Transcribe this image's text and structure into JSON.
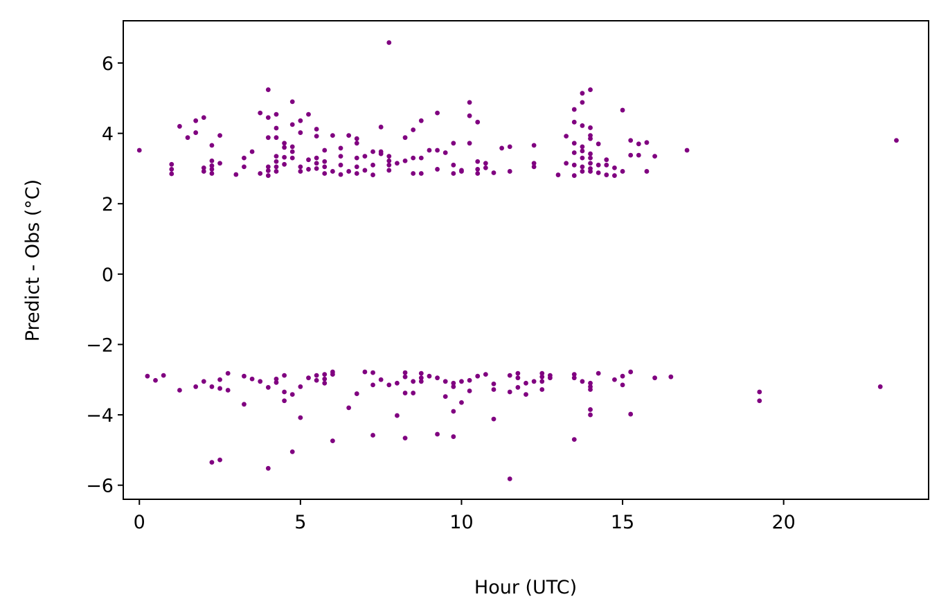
{
  "chart_data": {
    "type": "scatter",
    "title": "",
    "xlabel": "Hour (UTC)",
    "ylabel": "Predict - Obs (°C)",
    "xlim": [
      -0.5,
      24.5
    ],
    "ylim": [
      -6.4,
      7.2
    ],
    "xticks": [
      0,
      5,
      10,
      15,
      20
    ],
    "xtick_labels": [
      "0",
      "5",
      "10",
      "15",
      "20"
    ],
    "yticks": [
      -6,
      -4,
      -2,
      0,
      2,
      4,
      6
    ],
    "ytick_labels": [
      "−6",
      "−4",
      "−2",
      "0",
      "2",
      "4",
      "6"
    ],
    "grid": false,
    "marker_color": "#800080",
    "series": [
      {
        "points": [
          [
            0.0,
            3.52
          ],
          [
            1.0,
            3.12
          ],
          [
            1.0,
            2.98
          ],
          [
            1.0,
            2.85
          ],
          [
            1.25,
            4.2
          ],
          [
            1.5,
            3.88
          ],
          [
            1.75,
            4.02
          ],
          [
            1.75,
            4.36
          ],
          [
            2.0,
            4.45
          ],
          [
            2.0,
            3.02
          ],
          [
            2.0,
            2.92
          ],
          [
            2.25,
            3.22
          ],
          [
            2.25,
            3.08
          ],
          [
            2.25,
            2.98
          ],
          [
            2.25,
            2.86
          ],
          [
            2.25,
            3.66
          ],
          [
            2.5,
            3.94
          ],
          [
            2.5,
            3.15
          ],
          [
            3.0,
            2.83
          ],
          [
            3.25,
            3.3
          ],
          [
            3.25,
            3.05
          ],
          [
            3.5,
            3.48
          ],
          [
            3.75,
            4.58
          ],
          [
            3.75,
            2.86
          ],
          [
            4.0,
            5.24
          ],
          [
            4.0,
            4.45
          ],
          [
            4.0,
            3.88
          ],
          [
            4.0,
            3.05
          ],
          [
            4.0,
            2.94
          ],
          [
            4.0,
            2.8
          ],
          [
            4.25,
            4.54
          ],
          [
            4.25,
            4.15
          ],
          [
            4.25,
            3.88
          ],
          [
            4.25,
            3.35
          ],
          [
            4.25,
            3.2
          ],
          [
            4.25,
            3.05
          ],
          [
            4.25,
            2.92
          ],
          [
            4.5,
            3.72
          ],
          [
            4.5,
            3.6
          ],
          [
            4.5,
            3.32
          ],
          [
            4.5,
            3.12
          ],
          [
            4.75,
            4.9
          ],
          [
            4.75,
            4.25
          ],
          [
            4.75,
            3.62
          ],
          [
            4.75,
            3.48
          ],
          [
            4.75,
            3.3
          ],
          [
            5.0,
            4.36
          ],
          [
            5.0,
            4.02
          ],
          [
            5.0,
            3.05
          ],
          [
            5.0,
            2.92
          ],
          [
            5.25,
            4.54
          ],
          [
            5.25,
            3.25
          ],
          [
            5.25,
            2.98
          ],
          [
            5.5,
            4.12
          ],
          [
            5.5,
            3.92
          ],
          [
            5.5,
            3.3
          ],
          [
            5.5,
            3.15
          ],
          [
            5.5,
            3.0
          ],
          [
            5.75,
            3.52
          ],
          [
            5.75,
            3.2
          ],
          [
            5.75,
            3.05
          ],
          [
            5.75,
            2.86
          ],
          [
            6.0,
            3.94
          ],
          [
            6.0,
            2.92
          ],
          [
            6.25,
            3.58
          ],
          [
            6.25,
            3.35
          ],
          [
            6.25,
            3.1
          ],
          [
            6.25,
            2.83
          ],
          [
            6.5,
            3.94
          ],
          [
            6.5,
            2.92
          ],
          [
            6.75,
            3.85
          ],
          [
            6.75,
            3.72
          ],
          [
            6.75,
            3.3
          ],
          [
            6.75,
            3.05
          ],
          [
            6.75,
            2.86
          ],
          [
            7.0,
            3.35
          ],
          [
            7.0,
            2.95
          ],
          [
            7.25,
            3.48
          ],
          [
            7.25,
            3.1
          ],
          [
            7.25,
            2.82
          ],
          [
            7.5,
            4.18
          ],
          [
            7.5,
            3.48
          ],
          [
            7.5,
            3.42
          ],
          [
            7.75,
            6.58
          ],
          [
            7.75,
            3.35
          ],
          [
            7.75,
            3.22
          ],
          [
            7.75,
            3.1
          ],
          [
            7.75,
            2.95
          ],
          [
            8.0,
            3.15
          ],
          [
            8.25,
            3.88
          ],
          [
            8.25,
            3.22
          ],
          [
            8.5,
            4.1
          ],
          [
            8.5,
            3.3
          ],
          [
            8.5,
            2.86
          ],
          [
            8.75,
            4.36
          ],
          [
            8.75,
            3.3
          ],
          [
            8.75,
            2.86
          ],
          [
            9.0,
            3.52
          ],
          [
            9.25,
            4.58
          ],
          [
            9.25,
            3.52
          ],
          [
            9.25,
            2.98
          ],
          [
            9.5,
            3.45
          ],
          [
            9.75,
            3.72
          ],
          [
            9.75,
            3.1
          ],
          [
            9.75,
            2.86
          ],
          [
            10.0,
            2.95
          ],
          [
            10.0,
            2.92
          ],
          [
            10.25,
            4.88
          ],
          [
            10.25,
            4.5
          ],
          [
            10.25,
            3.72
          ],
          [
            10.5,
            4.32
          ],
          [
            10.5,
            3.2
          ],
          [
            10.5,
            2.98
          ],
          [
            10.5,
            2.86
          ],
          [
            10.75,
            3.15
          ],
          [
            10.75,
            3.02
          ],
          [
            11.0,
            2.88
          ],
          [
            11.25,
            3.58
          ],
          [
            11.5,
            3.62
          ],
          [
            11.5,
            2.92
          ],
          [
            12.25,
            3.66
          ],
          [
            12.25,
            3.15
          ],
          [
            12.25,
            3.05
          ],
          [
            13.0,
            2.82
          ],
          [
            13.25,
            3.92
          ],
          [
            13.25,
            3.15
          ],
          [
            13.5,
            4.68
          ],
          [
            13.5,
            4.32
          ],
          [
            13.5,
            3.72
          ],
          [
            13.5,
            3.45
          ],
          [
            13.5,
            3.1
          ],
          [
            13.5,
            2.8
          ],
          [
            13.75,
            5.14
          ],
          [
            13.75,
            4.88
          ],
          [
            13.75,
            4.22
          ],
          [
            13.75,
            3.62
          ],
          [
            13.75,
            3.5
          ],
          [
            13.75,
            3.3
          ],
          [
            13.75,
            3.05
          ],
          [
            13.75,
            2.92
          ],
          [
            14.0,
            5.24
          ],
          [
            14.0,
            4.16
          ],
          [
            14.0,
            3.94
          ],
          [
            14.0,
            3.85
          ],
          [
            14.0,
            3.42
          ],
          [
            14.0,
            3.3
          ],
          [
            14.0,
            3.15
          ],
          [
            14.0,
            3.0
          ],
          [
            14.0,
            2.92
          ],
          [
            14.25,
            3.7
          ],
          [
            14.25,
            3.1
          ],
          [
            14.25,
            2.88
          ],
          [
            14.5,
            3.25
          ],
          [
            14.5,
            3.1
          ],
          [
            14.5,
            2.82
          ],
          [
            14.75,
            3.02
          ],
          [
            14.75,
            2.8
          ],
          [
            15.0,
            4.66
          ],
          [
            15.0,
            2.92
          ],
          [
            15.25,
            3.8
          ],
          [
            15.25,
            3.38
          ],
          [
            15.5,
            3.7
          ],
          [
            15.5,
            3.38
          ],
          [
            15.75,
            3.74
          ],
          [
            15.75,
            2.92
          ],
          [
            16.0,
            3.35
          ],
          [
            17.0,
            3.52
          ],
          [
            23.5,
            3.8
          ],
          [
            0.25,
            -2.9
          ],
          [
            0.5,
            -3.02
          ],
          [
            0.75,
            -2.88
          ],
          [
            1.25,
            -3.3
          ],
          [
            1.75,
            -3.2
          ],
          [
            2.0,
            -3.05
          ],
          [
            2.25,
            -3.2
          ],
          [
            2.25,
            -5.35
          ],
          [
            2.5,
            -3.25
          ],
          [
            2.5,
            -3.0
          ],
          [
            2.5,
            -5.28
          ],
          [
            2.75,
            -3.3
          ],
          [
            2.75,
            -2.82
          ],
          [
            3.25,
            -2.9
          ],
          [
            3.25,
            -3.7
          ],
          [
            3.5,
            -2.98
          ],
          [
            3.75,
            -3.05
          ],
          [
            4.0,
            -3.22
          ],
          [
            4.0,
            -5.52
          ],
          [
            4.25,
            -3.08
          ],
          [
            4.25,
            -2.98
          ],
          [
            4.5,
            -2.88
          ],
          [
            4.5,
            -3.35
          ],
          [
            4.5,
            -3.6
          ],
          [
            4.75,
            -3.42
          ],
          [
            4.75,
            -5.05
          ],
          [
            5.0,
            -3.2
          ],
          [
            5.0,
            -4.08
          ],
          [
            5.25,
            -2.95
          ],
          [
            5.5,
            -3.02
          ],
          [
            5.5,
            -2.88
          ],
          [
            5.75,
            -3.1
          ],
          [
            5.75,
            -2.98
          ],
          [
            5.75,
            -2.85
          ],
          [
            6.0,
            -2.85
          ],
          [
            6.0,
            -2.78
          ],
          [
            6.0,
            -4.74
          ],
          [
            6.5,
            -3.8
          ],
          [
            6.75,
            -3.4
          ],
          [
            7.0,
            -2.78
          ],
          [
            7.25,
            -2.8
          ],
          [
            7.25,
            -3.15
          ],
          [
            7.25,
            -4.58
          ],
          [
            7.5,
            -3.0
          ],
          [
            7.75,
            -3.15
          ],
          [
            8.0,
            -3.1
          ],
          [
            8.0,
            -4.02
          ],
          [
            8.25,
            -2.8
          ],
          [
            8.25,
            -2.92
          ],
          [
            8.25,
            -3.38
          ],
          [
            8.25,
            -4.66
          ],
          [
            8.5,
            -3.05
          ],
          [
            8.5,
            -3.38
          ],
          [
            8.75,
            -2.82
          ],
          [
            8.75,
            -2.95
          ],
          [
            8.75,
            -3.05
          ],
          [
            9.0,
            -2.9
          ],
          [
            9.25,
            -4.55
          ],
          [
            9.25,
            -2.95
          ],
          [
            9.5,
            -3.05
          ],
          [
            9.5,
            -3.48
          ],
          [
            9.75,
            -3.1
          ],
          [
            9.75,
            -3.2
          ],
          [
            9.75,
            -3.9
          ],
          [
            9.75,
            -4.62
          ],
          [
            10.0,
            -3.05
          ],
          [
            10.0,
            -3.65
          ],
          [
            10.25,
            -3.02
          ],
          [
            10.25,
            -3.32
          ],
          [
            10.5,
            -2.9
          ],
          [
            10.75,
            -2.85
          ],
          [
            11.0,
            -3.12
          ],
          [
            11.0,
            -3.28
          ],
          [
            11.0,
            -4.12
          ],
          [
            11.5,
            -2.88
          ],
          [
            11.5,
            -3.35
          ],
          [
            11.5,
            -5.82
          ],
          [
            11.75,
            -2.82
          ],
          [
            11.75,
            -2.95
          ],
          [
            11.75,
            -3.22
          ],
          [
            12.0,
            -3.1
          ],
          [
            12.0,
            -3.42
          ],
          [
            12.25,
            -3.05
          ],
          [
            12.5,
            -2.82
          ],
          [
            12.5,
            -2.92
          ],
          [
            12.5,
            -3.05
          ],
          [
            12.5,
            -3.28
          ],
          [
            12.75,
            -2.88
          ],
          [
            12.75,
            -2.95
          ],
          [
            13.5,
            -2.85
          ],
          [
            13.5,
            -2.95
          ],
          [
            13.5,
            -4.7
          ],
          [
            13.75,
            -3.05
          ],
          [
            14.0,
            -3.1
          ],
          [
            14.0,
            -3.2
          ],
          [
            14.0,
            -3.28
          ],
          [
            14.0,
            -3.85
          ],
          [
            14.0,
            -4.0
          ],
          [
            14.25,
            -2.82
          ],
          [
            14.75,
            -3.0
          ],
          [
            15.0,
            -2.9
          ],
          [
            15.0,
            -3.15
          ],
          [
            15.25,
            -2.78
          ],
          [
            15.25,
            -3.98
          ],
          [
            16.0,
            -2.95
          ],
          [
            16.5,
            -2.92
          ],
          [
            19.25,
            -3.35
          ],
          [
            19.25,
            -3.6
          ],
          [
            23.0,
            -3.2
          ]
        ]
      }
    ]
  }
}
